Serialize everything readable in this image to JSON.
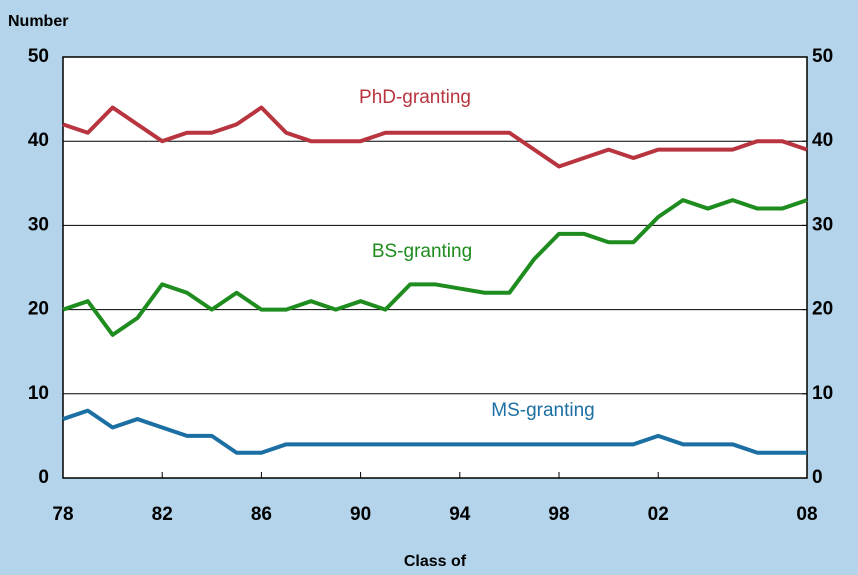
{
  "chart_data": {
    "type": "line",
    "y_axis_title": "Number",
    "x_axis_title": "Class of",
    "x": [
      1978,
      1979,
      1980,
      1981,
      1982,
      1983,
      1984,
      1985,
      1986,
      1987,
      1988,
      1989,
      1990,
      1991,
      1992,
      1993,
      1994,
      1995,
      1996,
      1997,
      1998,
      1999,
      2000,
      2001,
      2002,
      2003,
      2004,
      2005,
      2006,
      2007,
      2008
    ],
    "series": [
      {
        "name": "PhD-granting",
        "color": "#b8343f",
        "values": [
          42,
          41,
          44,
          42,
          40,
          41,
          41,
          42,
          44,
          41,
          40,
          40,
          40,
          41,
          41,
          41,
          41,
          41,
          41,
          39,
          37,
          38,
          39,
          38,
          39,
          39,
          39,
          39,
          40,
          40,
          39
        ]
      },
      {
        "name": "BS-granting",
        "color": "#1e8c1e",
        "values": [
          20,
          21,
          17,
          19,
          23,
          22,
          20,
          22,
          20,
          20,
          21,
          20,
          21,
          20,
          23,
          23,
          22.5,
          22,
          22,
          26,
          29,
          29,
          28,
          28,
          31,
          33,
          32,
          33,
          32,
          32,
          33
        ]
      },
      {
        "name": "MS-granting",
        "color": "#1b6fa3",
        "values": [
          7,
          8,
          6,
          7,
          6,
          5,
          5,
          3,
          3,
          4,
          4,
          4,
          4,
          4,
          4,
          4,
          4,
          4,
          4,
          4,
          4,
          4,
          4,
          4,
          5,
          4,
          4,
          4,
          3,
          3,
          3
        ]
      }
    ],
    "xlim": [
      1978,
      2008
    ],
    "xticks": [
      {
        "value": 1978,
        "label": "78"
      },
      {
        "value": 1982,
        "label": "82"
      },
      {
        "value": 1986,
        "label": "86"
      },
      {
        "value": 1990,
        "label": "90"
      },
      {
        "value": 1994,
        "label": "94"
      },
      {
        "value": 1998,
        "label": "98"
      },
      {
        "value": 2002,
        "label": "02"
      },
      {
        "value": 2008,
        "label": "08"
      }
    ],
    "ylim": [
      0,
      50
    ],
    "yticks": [
      0,
      10,
      20,
      30,
      40,
      50
    ],
    "y2lim": [
      0,
      50
    ],
    "y2ticks": [
      0,
      10,
      20,
      30,
      40,
      50
    ],
    "grid": true
  }
}
